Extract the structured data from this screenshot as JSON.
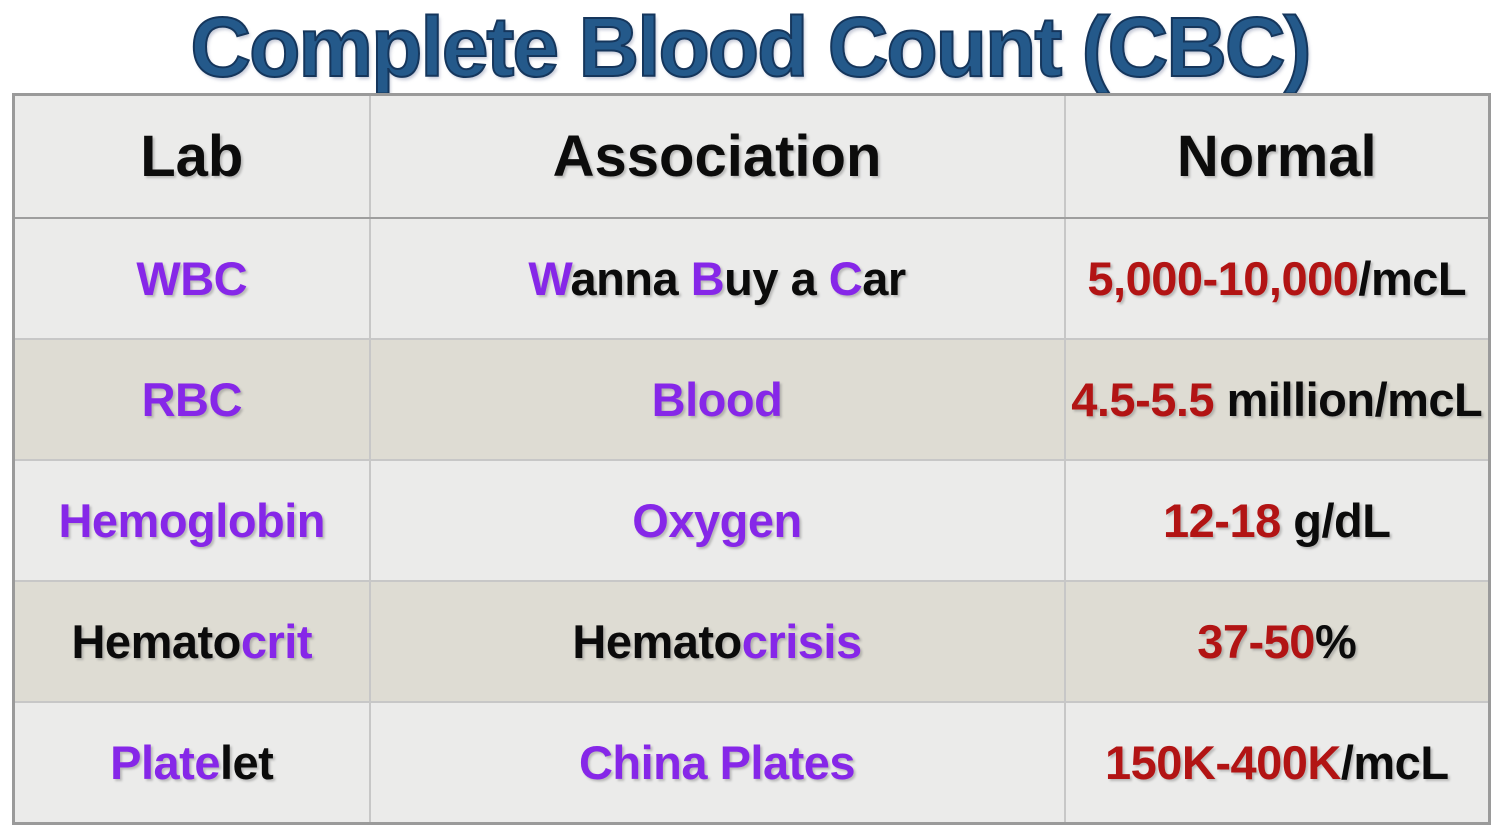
{
  "title": "Complete Blood Count (CBC)",
  "table": {
    "headers": [
      "Lab",
      "Association",
      "Normal"
    ],
    "rows": [
      {
        "name": "wbc",
        "lab": [
          {
            "text": "WBC",
            "color": "purple"
          }
        ],
        "association": [
          {
            "text": "W",
            "color": "purple"
          },
          {
            "text": "anna ",
            "color": "black"
          },
          {
            "text": "B",
            "color": "purple"
          },
          {
            "text": "uy a ",
            "color": "black"
          },
          {
            "text": "C",
            "color": "purple"
          },
          {
            "text": "ar",
            "color": "black"
          }
        ],
        "normal": [
          {
            "text": "5,000-10,000",
            "color": "red"
          },
          {
            "text": "/mcL",
            "color": "black"
          }
        ]
      },
      {
        "name": "rbc",
        "lab": [
          {
            "text": "RBC",
            "color": "purple"
          }
        ],
        "association": [
          {
            "text": "Blood",
            "color": "purple"
          }
        ],
        "normal": [
          {
            "text": "4.5-5.5",
            "color": "red"
          },
          {
            "text": " million/mcL",
            "color": "black"
          }
        ]
      },
      {
        "name": "hemoglobin",
        "lab": [
          {
            "text": "Hemoglobin",
            "color": "purple"
          }
        ],
        "association": [
          {
            "text": "Oxygen",
            "color": "purple"
          }
        ],
        "normal": [
          {
            "text": "12-18",
            "color": "red"
          },
          {
            "text": " g/dL",
            "color": "black"
          }
        ]
      },
      {
        "name": "hematocrit",
        "lab": [
          {
            "text": "Hemato",
            "color": "black"
          },
          {
            "text": "crit",
            "color": "purple"
          }
        ],
        "association": [
          {
            "text": "Hemato",
            "color": "black"
          },
          {
            "text": "crisis",
            "color": "purple"
          }
        ],
        "normal": [
          {
            "text": "37-50",
            "color": "red"
          },
          {
            "text": "%",
            "color": "black"
          }
        ]
      },
      {
        "name": "platelet",
        "lab": [
          {
            "text": "Plate",
            "color": "purple"
          },
          {
            "text": "let",
            "color": "black"
          }
        ],
        "association": [
          {
            "text": "China Plates",
            "color": "purple"
          }
        ],
        "normal": [
          {
            "text": "150K-400K",
            "color": "red"
          },
          {
            "text": "/mcL",
            "color": "black"
          }
        ]
      }
    ]
  },
  "colors": {
    "purple": "#8627E8",
    "red": "#B21414",
    "black": "#0B0B0B",
    "title_fill": "#24598A",
    "title_outline": "#15365C",
    "header_bg": "#EBEBEA",
    "row_light": "#EBEBEA",
    "row_dark": "#DEDCD3"
  }
}
